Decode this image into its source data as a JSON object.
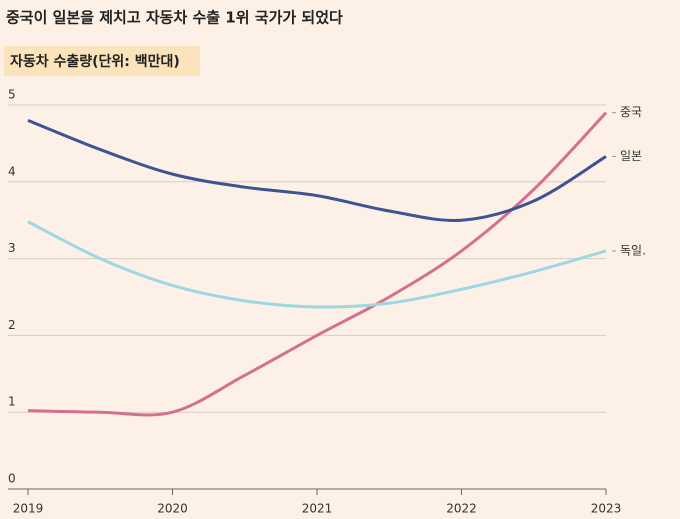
{
  "chart_data": {
    "type": "line",
    "title": "중국이 일본을 제치고 자동차 수출 1위 국가가 되었다",
    "subtitle": "자동차 수출량(단위: 백만대)",
    "x": [
      2019,
      2019.5,
      2020,
      2020.5,
      2021,
      2021.5,
      2022,
      2022.5,
      2023
    ],
    "series": [
      {
        "name": "중국",
        "color": "#d4708f",
        "values": [
          1.02,
          1.0,
          1.0,
          1.48,
          2.0,
          2.5,
          3.1,
          3.9,
          4.9
        ]
      },
      {
        "name": "일본",
        "color": "#3d5393",
        "values": [
          4.8,
          4.42,
          4.1,
          3.93,
          3.82,
          3.62,
          3.5,
          3.75,
          4.33
        ]
      },
      {
        "name": "독일.",
        "color": "#9dd8e2",
        "values": [
          3.48,
          3.0,
          2.65,
          2.45,
          2.37,
          2.42,
          2.6,
          2.83,
          3.1
        ]
      }
    ],
    "xlim": [
      2019,
      2023
    ],
    "xticks": [
      2019,
      2020,
      2021,
      2022,
      2023
    ],
    "ylim": [
      0,
      5
    ],
    "yticks": [
      0,
      1,
      2,
      3,
      4,
      5
    ],
    "grid": true
  }
}
